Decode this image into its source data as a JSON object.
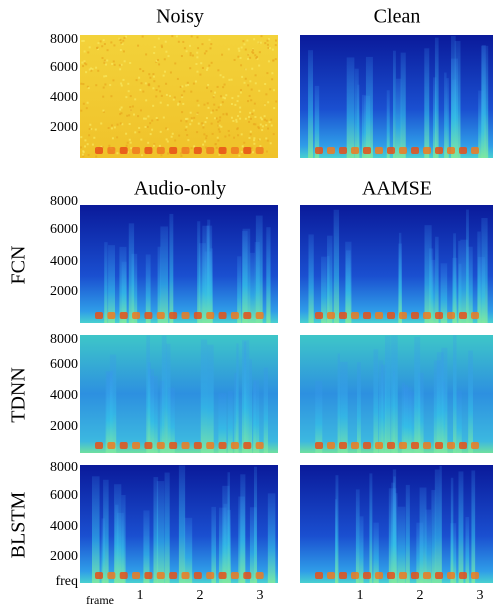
{
  "panel_titles": [
    "Noisy",
    "Clean",
    "Audio-only",
    "AAMSE"
  ],
  "row_labels": [
    "FCN",
    "TDNN",
    "BLSTM"
  ],
  "y_ticks": [
    8000,
    6000,
    4000,
    2000
  ],
  "y_axis_label": "freq",
  "x_axis_label": "frame",
  "x_ticks": [
    1,
    2,
    3
  ]
}
